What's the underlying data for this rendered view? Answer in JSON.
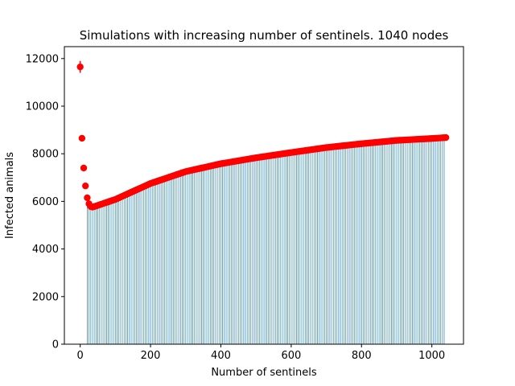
{
  "chart_data": {
    "type": "scatter",
    "title": "Simulations with increasing number of sentinels. 1040 nodes",
    "xlabel": "Number of sentinels",
    "ylabel": "Infected animals",
    "xlim": [
      -45,
      1090
    ],
    "ylim": [
      0,
      12500
    ],
    "xticks": [
      0,
      200,
      400,
      600,
      800,
      1000
    ],
    "yticks": [
      0,
      2000,
      4000,
      6000,
      8000,
      10000,
      12000
    ],
    "grid": false,
    "legend": "none",
    "colors": {
      "points": "#ff0000",
      "bars": "#1f77b4",
      "axes": "#000000"
    },
    "series": [
      {
        "marker": "circle",
        "error_bars": true,
        "key_points": [
          {
            "x": 0,
            "y": 11650,
            "err": 250
          },
          {
            "x": 5,
            "y": 8650,
            "err": 60
          },
          {
            "x": 10,
            "y": 7400,
            "err": 60
          },
          {
            "x": 15,
            "y": 6650,
            "err": 60
          },
          {
            "x": 20,
            "y": 6150,
            "err": 60
          },
          {
            "x": 25,
            "y": 5900,
            "err": 60
          },
          {
            "x": 30,
            "y": 5780,
            "err": 60
          },
          {
            "x": 35,
            "y": 5760,
            "err": 60
          },
          {
            "x": 40,
            "y": 5780,
            "err": 60
          }
        ],
        "trend": [
          [
            40,
            5780
          ],
          [
            100,
            6080
          ],
          [
            200,
            6750
          ],
          [
            300,
            7250
          ],
          [
            400,
            7580
          ],
          [
            500,
            7830
          ],
          [
            600,
            8050
          ],
          [
            700,
            8260
          ],
          [
            800,
            8420
          ],
          [
            900,
            8560
          ],
          [
            1000,
            8640
          ],
          [
            1040,
            8680
          ]
        ],
        "x_start": 0,
        "x_end": 1040,
        "x_step": 5
      }
    ],
    "stem_bars": {
      "x_start": 20,
      "x_end": 1020,
      "x_step": 30,
      "stem_rel_positions": [
        0,
        5,
        10,
        15,
        20,
        25
      ]
    }
  }
}
